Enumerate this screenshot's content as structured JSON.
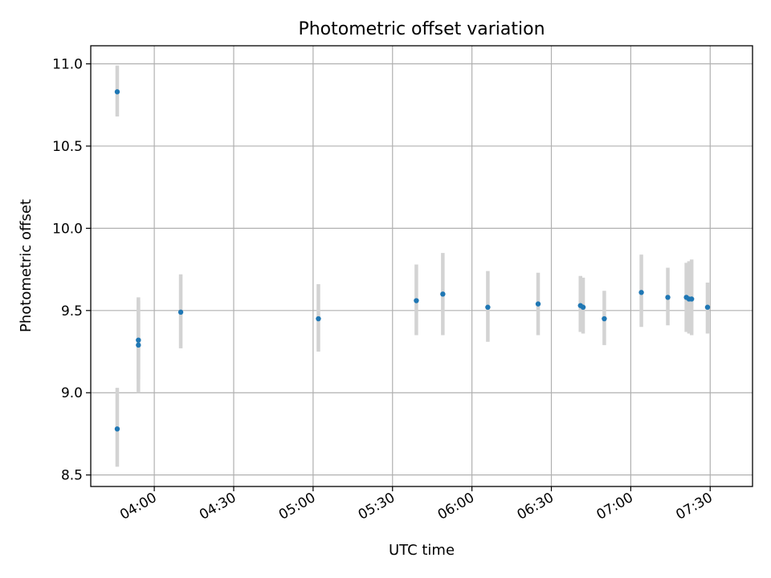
{
  "chart_data": {
    "type": "scatter",
    "title": "Photometric offset variation",
    "xlabel": "UTC time",
    "ylabel": "Photometric offset",
    "x_axis_kind": "time",
    "xlim": [
      "03:36",
      "07:46"
    ],
    "ylim": [
      8.43,
      11.11
    ],
    "yticks": [
      8.5,
      9.0,
      9.5,
      10.0,
      10.5,
      11.0
    ],
    "ytick_labels": [
      "8.5",
      "9.0",
      "9.5",
      "10.0",
      "10.5",
      "11.0"
    ],
    "xticks": [
      "04:00",
      "04:30",
      "05:00",
      "05:30",
      "06:00",
      "06:30",
      "07:00",
      "07:30"
    ],
    "xtick_labels": [
      "04:00",
      "04:30",
      "05:00",
      "05:30",
      "06:00",
      "06:30",
      "07:00",
      "07:30"
    ],
    "grid": true,
    "marker_color": "#1f77b4",
    "errorbar_color": "#d3d3d3",
    "points": [
      {
        "x": "03:46",
        "y": 10.83,
        "low": 10.68,
        "high": 10.99
      },
      {
        "x": "03:46",
        "y": 8.78,
        "low": 8.55,
        "high": 9.03
      },
      {
        "x": "03:54",
        "y": 9.32,
        "low": 9.08,
        "high": 9.58
      },
      {
        "x": "03:54",
        "y": 9.29,
        "low": 9.0,
        "high": 9.56
      },
      {
        "x": "04:10",
        "y": 9.49,
        "low": 9.27,
        "high": 9.72
      },
      {
        "x": "05:02",
        "y": 9.45,
        "low": 9.25,
        "high": 9.66
      },
      {
        "x": "05:39",
        "y": 9.56,
        "low": 9.35,
        "high": 9.78
      },
      {
        "x": "05:49",
        "y": 9.6,
        "low": 9.35,
        "high": 9.85
      },
      {
        "x": "06:06",
        "y": 9.52,
        "low": 9.31,
        "high": 9.74
      },
      {
        "x": "06:25",
        "y": 9.54,
        "low": 9.35,
        "high": 9.73
      },
      {
        "x": "06:41",
        "y": 9.53,
        "low": 9.37,
        "high": 9.71
      },
      {
        "x": "06:42",
        "y": 9.52,
        "low": 9.36,
        "high": 9.7
      },
      {
        "x": "06:50",
        "y": 9.45,
        "low": 9.29,
        "high": 9.62
      },
      {
        "x": "07:04",
        "y": 9.61,
        "low": 9.4,
        "high": 9.84
      },
      {
        "x": "07:14",
        "y": 9.58,
        "low": 9.41,
        "high": 9.76
      },
      {
        "x": "07:21",
        "y": 9.58,
        "low": 9.37,
        "high": 9.79
      },
      {
        "x": "07:22",
        "y": 9.57,
        "low": 9.36,
        "high": 9.8
      },
      {
        "x": "07:23",
        "y": 9.57,
        "low": 9.35,
        "high": 9.81
      },
      {
        "x": "07:29",
        "y": 9.52,
        "low": 9.36,
        "high": 9.67
      }
    ]
  }
}
